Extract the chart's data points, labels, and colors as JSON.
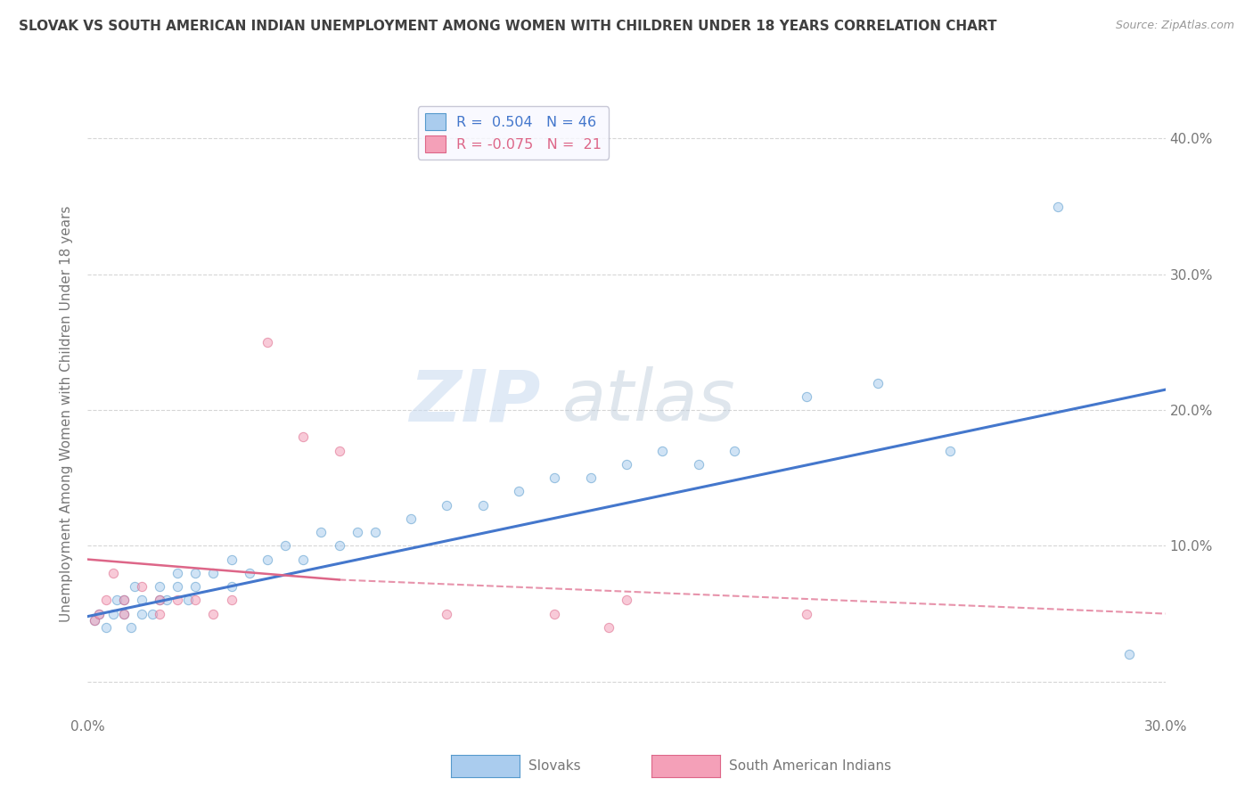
{
  "title": "SLOVAK VS SOUTH AMERICAN INDIAN UNEMPLOYMENT AMONG WOMEN WITH CHILDREN UNDER 18 YEARS CORRELATION CHART",
  "source": "Source: ZipAtlas.com",
  "ylabel": "Unemployment Among Women with Children Under 18 years",
  "xlim": [
    0.0,
    0.3
  ],
  "ylim": [
    -0.025,
    0.42
  ],
  "xticks": [
    0.0,
    0.05,
    0.1,
    0.15,
    0.2,
    0.25,
    0.3
  ],
  "xticklabels": [
    "0.0%",
    "",
    "",
    "",
    "",
    "",
    "30.0%"
  ],
  "yticks": [
    0.0,
    0.1,
    0.2,
    0.3,
    0.4
  ],
  "yticklabels_left": [
    "",
    "",
    "",
    "",
    ""
  ],
  "yticklabels_right": [
    "",
    "10.0%",
    "20.0%",
    "30.0%",
    "40.0%"
  ],
  "legend_r1": "R =  0.504   N = 46",
  "legend_r2": "R = -0.075   N =  21",
  "slovak_scatter_x": [
    0.002,
    0.003,
    0.005,
    0.007,
    0.008,
    0.01,
    0.01,
    0.012,
    0.013,
    0.015,
    0.015,
    0.018,
    0.02,
    0.02,
    0.022,
    0.025,
    0.025,
    0.028,
    0.03,
    0.03,
    0.035,
    0.04,
    0.04,
    0.045,
    0.05,
    0.055,
    0.06,
    0.065,
    0.07,
    0.075,
    0.08,
    0.09,
    0.1,
    0.11,
    0.12,
    0.13,
    0.14,
    0.15,
    0.16,
    0.17,
    0.18,
    0.2,
    0.22,
    0.24,
    0.27,
    0.29
  ],
  "slovak_scatter_y": [
    0.045,
    0.05,
    0.04,
    0.05,
    0.06,
    0.05,
    0.06,
    0.04,
    0.07,
    0.05,
    0.06,
    0.05,
    0.06,
    0.07,
    0.06,
    0.07,
    0.08,
    0.06,
    0.07,
    0.08,
    0.08,
    0.07,
    0.09,
    0.08,
    0.09,
    0.1,
    0.09,
    0.11,
    0.1,
    0.11,
    0.11,
    0.12,
    0.13,
    0.13,
    0.14,
    0.15,
    0.15,
    0.16,
    0.17,
    0.16,
    0.17,
    0.21,
    0.22,
    0.17,
    0.35,
    0.02
  ],
  "sai_scatter_x": [
    0.002,
    0.003,
    0.005,
    0.007,
    0.01,
    0.01,
    0.015,
    0.02,
    0.02,
    0.025,
    0.03,
    0.035,
    0.04,
    0.05,
    0.06,
    0.07,
    0.1,
    0.13,
    0.15,
    0.2,
    0.145
  ],
  "sai_scatter_y": [
    0.045,
    0.05,
    0.06,
    0.08,
    0.05,
    0.06,
    0.07,
    0.05,
    0.06,
    0.06,
    0.06,
    0.05,
    0.06,
    0.25,
    0.18,
    0.17,
    0.05,
    0.05,
    0.06,
    0.05,
    0.04
  ],
  "slovak_line_x": [
    0.0,
    0.3
  ],
  "slovak_line_y": [
    0.048,
    0.215
  ],
  "sai_solid_line_x": [
    0.0,
    0.07
  ],
  "sai_solid_line_y": [
    0.09,
    0.075
  ],
  "sai_dash_line_x": [
    0.07,
    0.3
  ],
  "sai_dash_line_y": [
    0.075,
    0.05
  ],
  "scatter_size": 55,
  "scatter_alpha": 0.55,
  "bg_color": "#ffffff",
  "grid_color": "#cccccc",
  "title_color": "#404040",
  "axis_color": "#777777",
  "watermark_text": "ZIPatlas",
  "slovak_scatter_color": "#aaccee",
  "slovak_edge_color": "#5599cc",
  "sai_scatter_color": "#f4a0b8",
  "sai_edge_color": "#dd6688",
  "slovak_line_color": "#4477cc",
  "sai_line_color": "#dd6688",
  "legend_bg": "#f8f8ff",
  "legend_edge": "#bbbbcc",
  "bottom_legend_label1": "Slovaks",
  "bottom_legend_label2": "South American Indians"
}
